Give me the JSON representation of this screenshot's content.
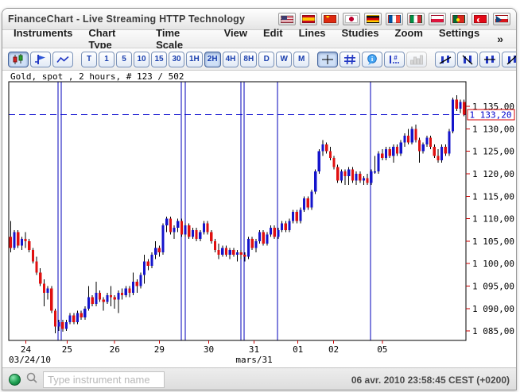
{
  "window": {
    "title": "FinanceChart - Live Streaming HTTP Technology"
  },
  "title_flags": [
    {
      "name": "flag-usa"
    },
    {
      "name": "flag-spain"
    },
    {
      "name": "flag-china"
    },
    {
      "name": "flag-japan"
    },
    {
      "name": "flag-germany"
    },
    {
      "name": "flag-france"
    },
    {
      "name": "flag-italy"
    },
    {
      "name": "flag-poland"
    },
    {
      "name": "flag-portugal"
    },
    {
      "name": "flag-turkey"
    },
    {
      "name": "flag-czech"
    }
  ],
  "menu": {
    "items": [
      "Instruments",
      "Chart Type",
      "Time Scale",
      "View",
      "Edit",
      "Lines",
      "Studies",
      "Zoom",
      "Settings"
    ],
    "overflow": "»"
  },
  "toolbar": {
    "chart_types": [
      {
        "name": "candlestick-chart-button",
        "icon": "candles",
        "selected": true
      },
      {
        "name": "ohlc-chart-button",
        "icon": "ohlc",
        "selected": false
      },
      {
        "name": "line-chart-button",
        "icon": "linechart",
        "selected": false
      }
    ],
    "timeframes": [
      {
        "label": "T",
        "selected": false
      },
      {
        "label": "1",
        "selected": false
      },
      {
        "label": "5",
        "selected": false
      },
      {
        "label": "10",
        "selected": false
      },
      {
        "label": "15",
        "selected": false
      },
      {
        "label": "30",
        "selected": false
      },
      {
        "label": "1H",
        "selected": false
      },
      {
        "label": "2H",
        "selected": true
      },
      {
        "label": "4H",
        "selected": false
      },
      {
        "label": "8H",
        "selected": false
      },
      {
        "label": "D",
        "selected": false
      },
      {
        "label": "W",
        "selected": false
      },
      {
        "label": "M",
        "selected": false
      }
    ],
    "view_tools": [
      {
        "name": "crosshair-button",
        "icon": "crosshair",
        "selected": true
      },
      {
        "name": "grid-button",
        "icon": "grid",
        "selected": false
      },
      {
        "name": "info-bubble-button",
        "icon": "info",
        "selected": false
      },
      {
        "name": "values-button",
        "icon": "values",
        "selected": false
      },
      {
        "name": "volume-button",
        "icon": "volume",
        "selected": false,
        "disabled": true
      }
    ],
    "line_tools": [
      {
        "name": "trend-line-up-button",
        "icon": "trend1"
      },
      {
        "name": "trend-line-down-button",
        "icon": "trend2"
      },
      {
        "name": "horizontal-line-button",
        "icon": "trend3"
      },
      {
        "name": "vertical-trend-line-button",
        "icon": "trend4"
      }
    ],
    "edit_tools": [
      {
        "name": "delete-lines-button",
        "icon": "deleteline"
      },
      {
        "name": "eraser-button",
        "icon": "eraser"
      },
      {
        "name": "pin-button",
        "icon": "pin"
      }
    ],
    "overflow": "»"
  },
  "chart": {
    "instrument_label": "Gold, spot , 2 hours, # 123 / 502",
    "sub_labels": [
      {
        "label": "03/24/10",
        "align": "left",
        "at_index": 0
      },
      {
        "label": "mars/31",
        "align": "center",
        "at_index": 65.5
      }
    ]
  },
  "chart_data": {
    "type": "candlestick",
    "title": "Gold, spot, 2 hours",
    "candle_count_label": "# 123 / 502",
    "ylim": [
      1082.9,
      1140.5
    ],
    "y_ticks": [
      {
        "value": 1135,
        "label": "1 135,00"
      },
      {
        "value": 1130,
        "label": "1 130,00"
      },
      {
        "value": 1125,
        "label": "1 125,00"
      },
      {
        "value": 1120,
        "label": "1 120,00"
      },
      {
        "value": 1115,
        "label": "1 115,00"
      },
      {
        "value": 1110,
        "label": "1 110,00"
      },
      {
        "value": 1105,
        "label": "1 105,00"
      },
      {
        "value": 1100,
        "label": "1 100,00"
      },
      {
        "value": 1095,
        "label": "1 095,00"
      },
      {
        "value": 1090,
        "label": "1 090,00"
      },
      {
        "value": 1085,
        "label": "1 085,00"
      }
    ],
    "x_ticks": [
      {
        "label": "24",
        "index": 4.1
      },
      {
        "label": "25",
        "index": 15.2
      },
      {
        "label": "26",
        "index": 28
      },
      {
        "label": "29",
        "index": 40
      },
      {
        "label": "30",
        "index": 53.3
      },
      {
        "label": "31",
        "index": 65.5
      },
      {
        "label": "01",
        "index": 77.3
      },
      {
        "label": "02",
        "index": 86.9
      },
      {
        "label": "05",
        "index": 100
      }
    ],
    "separators": [
      12.76,
      13.6,
      45.9,
      47.0,
      61.96,
      62.8,
      71.8,
      96.8
    ],
    "current_price": {
      "value": 1133.2,
      "label": "1 133,20"
    },
    "colors": {
      "up": "#1414cc",
      "down": "#e01010",
      "wick": "#000000",
      "separator": "#0000bb",
      "tick": "#cc0000",
      "price_line": "#0000cc",
      "axis": "#000000"
    },
    "candles": [
      [
        1106,
        1109.5,
        1102.5,
        1103.5
      ],
      [
        1103.5,
        1107.5,
        1103,
        1107
      ],
      [
        1107,
        1107.5,
        1103.5,
        1104
      ],
      [
        1104,
        1106,
        1103,
        1105.5
      ],
      [
        1105.5,
        1107,
        1103.5,
        1105
      ],
      [
        1105,
        1105.5,
        1102.5,
        1103
      ],
      [
        1103,
        1103.5,
        1100,
        1100.5
      ],
      [
        1100.5,
        1101.5,
        1097.5,
        1098
      ],
      [
        1098,
        1099,
        1095,
        1095.5
      ],
      [
        1095.5,
        1096.5,
        1090.5,
        1093.5
      ],
      [
        1093.5,
        1095,
        1092,
        1094.5
      ],
      [
        1094.5,
        1095,
        1089,
        1089.5
      ],
      [
        1089.5,
        1090,
        1084.5,
        1086
      ],
      [
        1086,
        1087.5,
        1085,
        1087
      ],
      [
        1087,
        1087.5,
        1084.8,
        1085.5
      ],
      [
        1085.5,
        1087.5,
        1085,
        1087
      ],
      [
        1087,
        1089,
        1086.5,
        1088.5
      ],
      [
        1088.5,
        1089,
        1086.5,
        1087
      ],
      [
        1087,
        1089.5,
        1086.5,
        1089
      ],
      [
        1089,
        1089.5,
        1087.5,
        1088
      ],
      [
        1088,
        1090.5,
        1087.5,
        1090
      ],
      [
        1090,
        1095,
        1089.5,
        1092.5
      ],
      [
        1092.5,
        1093,
        1090.5,
        1091
      ],
      [
        1091,
        1096,
        1090.5,
        1093.5
      ],
      [
        1093.5,
        1094,
        1091.5,
        1092
      ],
      [
        1092,
        1092.5,
        1089.5,
        1091.5
      ],
      [
        1091.5,
        1093.5,
        1091,
        1093
      ],
      [
        1093,
        1095,
        1090.5,
        1092.5
      ],
      [
        1092.5,
        1093,
        1090,
        1092
      ],
      [
        1092,
        1094,
        1089,
        1093.5
      ],
      [
        1093.5,
        1094.5,
        1092,
        1093
      ],
      [
        1093,
        1095,
        1092.5,
        1094.5
      ],
      [
        1094.5,
        1095,
        1092.5,
        1093.5
      ],
      [
        1093.5,
        1098,
        1093,
        1096
      ],
      [
        1096,
        1096.5,
        1093.5,
        1095
      ],
      [
        1095,
        1098,
        1094.5,
        1097.5
      ],
      [
        1097.5,
        1102,
        1095.5,
        1100.5
      ],
      [
        1100.5,
        1101,
        1098.5,
        1099.5
      ],
      [
        1099.5,
        1102.5,
        1099,
        1102
      ],
      [
        1102,
        1105,
        1101,
        1103.5
      ],
      [
        1103.5,
        1104,
        1101.5,
        1102.5
      ],
      [
        1102.5,
        1109,
        1102,
        1108.5
      ],
      [
        1108.5,
        1110.5,
        1107,
        1110
      ],
      [
        1110,
        1110.5,
        1106.5,
        1107
      ],
      [
        1107,
        1108.5,
        1105.5,
        1108
      ],
      [
        1108,
        1110,
        1107,
        1109.5
      ],
      [
        1109.5,
        1110,
        1106,
        1106.5
      ],
      [
        1106.5,
        1109,
        1106,
        1108.5
      ],
      [
        1108.5,
        1109,
        1105.5,
        1106
      ],
      [
        1106,
        1108,
        1105.5,
        1107.5
      ],
      [
        1107.5,
        1108,
        1105,
        1105.5
      ],
      [
        1105.5,
        1107.5,
        1105,
        1107
      ],
      [
        1107,
        1109.5,
        1106.5,
        1109
      ],
      [
        1109,
        1109.5,
        1106.5,
        1107
      ],
      [
        1107,
        1107.5,
        1104.5,
        1105
      ],
      [
        1105,
        1105.5,
        1102.5,
        1103
      ],
      [
        1103,
        1104.5,
        1101,
        1102
      ],
      [
        1102,
        1104,
        1101.5,
        1103.5
      ],
      [
        1103.5,
        1104,
        1101.5,
        1102
      ],
      [
        1102,
        1103.5,
        1101,
        1103
      ],
      [
        1103,
        1103.5,
        1101.5,
        1102
      ],
      [
        1102,
        1103,
        1100.5,
        1102.5
      ],
      [
        1102.5,
        1103,
        1101,
        1102
      ],
      [
        1102,
        1102.5,
        1100.5,
        1101.5
      ],
      [
        1101.5,
        1106,
        1101,
        1105.5
      ],
      [
        1105.5,
        1106,
        1103,
        1103.5
      ],
      [
        1103.5,
        1105.5,
        1102.5,
        1105
      ],
      [
        1105,
        1107.5,
        1104.5,
        1107
      ],
      [
        1107,
        1107.5,
        1104,
        1104.5
      ],
      [
        1104.5,
        1107,
        1104,
        1106.5
      ],
      [
        1106.5,
        1108.5,
        1106,
        1108
      ],
      [
        1108,
        1108.5,
        1105.5,
        1106
      ],
      [
        1106,
        1108,
        1105.5,
        1107.5
      ],
      [
        1107.5,
        1109.5,
        1107,
        1109
      ],
      [
        1109,
        1109.5,
        1107,
        1107.5
      ],
      [
        1107.5,
        1110,
        1107,
        1109.5
      ],
      [
        1109.5,
        1112,
        1109,
        1111.5
      ],
      [
        1111.5,
        1112,
        1109,
        1109.5
      ],
      [
        1109.5,
        1112.5,
        1109,
        1112
      ],
      [
        1112,
        1115,
        1111.5,
        1114.5
      ],
      [
        1114.5,
        1115,
        1112,
        1112.5
      ],
      [
        1112.5,
        1116.5,
        1112,
        1116
      ],
      [
        1116,
        1121,
        1115.5,
        1120.5
      ],
      [
        1120.5,
        1125.5,
        1120,
        1125
      ],
      [
        1125,
        1127.5,
        1124,
        1126.5
      ],
      [
        1126.5,
        1127,
        1124.5,
        1125
      ],
      [
        1125,
        1126,
        1123,
        1123.5
      ],
      [
        1123.5,
        1124,
        1121,
        1121.5
      ],
      [
        1121.5,
        1122,
        1118,
        1118.5
      ],
      [
        1118.5,
        1121,
        1118,
        1120.5
      ],
      [
        1120.5,
        1121,
        1117.5,
        1119.5
      ],
      [
        1119.5,
        1121.5,
        1117.5,
        1121
      ],
      [
        1121,
        1121.5,
        1118,
        1118.5
      ],
      [
        1118.5,
        1120.5,
        1117.5,
        1120
      ],
      [
        1120,
        1120.5,
        1118,
        1118.5
      ],
      [
        1118.5,
        1119.5,
        1117.5,
        1119
      ],
      [
        1119,
        1120,
        1117.5,
        1118
      ],
      [
        1118,
        1121,
        1117.5,
        1120.5
      ],
      [
        1120.5,
        1124,
        1120,
        1120.5
      ],
      [
        1120.5,
        1125,
        1120,
        1124.5
      ],
      [
        1124.5,
        1125.5,
        1123,
        1123.5
      ],
      [
        1123.5,
        1126,
        1123,
        1125.5
      ],
      [
        1125.5,
        1126,
        1123.5,
        1124
      ],
      [
        1124,
        1126.5,
        1122.5,
        1126
      ],
      [
        1126,
        1126.5,
        1124,
        1124.5
      ],
      [
        1124.5,
        1127.5,
        1124,
        1127
      ],
      [
        1127,
        1129,
        1126,
        1128.5
      ],
      [
        1128.5,
        1130,
        1126.5,
        1127
      ],
      [
        1127,
        1130.5,
        1126.5,
        1130
      ],
      [
        1130,
        1131,
        1127,
        1127.5
      ],
      [
        1127.5,
        1128,
        1122.5,
        1125
      ],
      [
        1125,
        1127,
        1124.5,
        1126.5
      ],
      [
        1126.5,
        1128.5,
        1126,
        1128
      ],
      [
        1128,
        1128.5,
        1125.5,
        1126
      ],
      [
        1126,
        1126.5,
        1123.5,
        1124
      ],
      [
        1124,
        1125.5,
        1122.5,
        1123
      ],
      [
        1123,
        1126.5,
        1122.5,
        1126
      ],
      [
        1126,
        1126.5,
        1124,
        1124.5
      ],
      [
        1124.5,
        1130,
        1124,
        1129.5
      ],
      [
        1129.5,
        1137,
        1129,
        1136.5
      ],
      [
        1136.5,
        1137.5,
        1134,
        1134.5
      ],
      [
        1134.5,
        1136.5,
        1133.5,
        1136
      ],
      [
        1136,
        1136.5,
        1132.8,
        1133.2
      ]
    ]
  },
  "statusbar": {
    "search_placeholder": "Type instrument name",
    "timestamp": "06 avr. 2010 23:58:45  CEST (+0200)"
  }
}
